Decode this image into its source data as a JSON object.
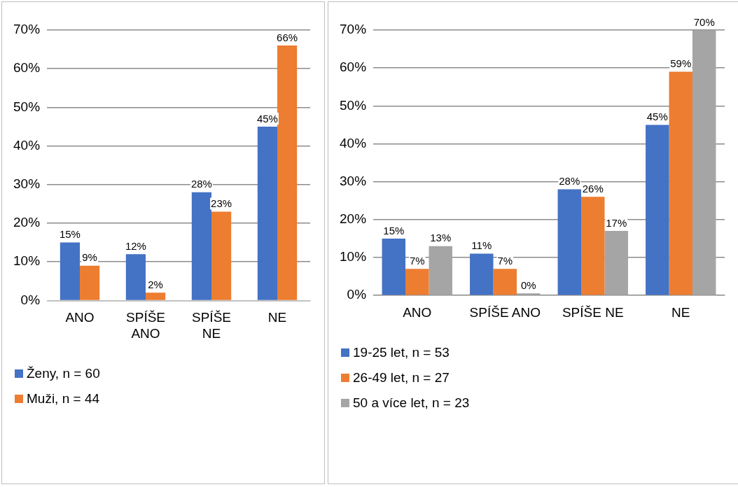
{
  "chart_data": [
    {
      "type": "bar",
      "categories": [
        "ANO",
        "SPÍŠE ANO",
        "SPÍŠE NE",
        "NE"
      ],
      "series": [
        {
          "name": "Ženy, n = 60",
          "color": "#4472c4",
          "values": [
            15,
            12,
            28,
            45
          ],
          "value_labels": [
            "15%",
            "12%",
            "28%",
            "45%"
          ]
        },
        {
          "name": "Muži, n = 44",
          "color": "#ed7d31",
          "values": [
            9,
            2,
            23,
            66
          ],
          "value_labels": [
            "9%",
            "2%",
            "23%",
            "66%"
          ]
        }
      ],
      "ylim": [
        0,
        70
      ],
      "yticks": [
        {
          "value": 0,
          "label": "0%"
        },
        {
          "value": 10,
          "label": "10%"
        },
        {
          "value": 20,
          "label": "20%"
        },
        {
          "value": 30,
          "label": "30%"
        },
        {
          "value": 40,
          "label": "40%"
        },
        {
          "value": 50,
          "label": "50%"
        },
        {
          "value": 60,
          "label": "60%"
        },
        {
          "value": 70,
          "label": "70%"
        }
      ],
      "grid": "y",
      "legend": "bottom"
    },
    {
      "type": "bar",
      "categories": [
        "ANO",
        "SPÍŠE ANO",
        "SPÍŠE NE",
        "NE"
      ],
      "series": [
        {
          "name": "19-25 let, n = 53",
          "color": "#4472c4",
          "values": [
            15,
            11,
            28,
            45
          ],
          "value_labels": [
            "15%",
            "11%",
            "28%",
            "45%"
          ]
        },
        {
          "name": "26-49 let, n = 27",
          "color": "#ed7d31",
          "values": [
            7,
            7,
            26,
            59
          ],
          "value_labels": [
            "7%",
            "7%",
            "26%",
            "59%"
          ]
        },
        {
          "name": "50 a více let, n = 23",
          "color": "#a5a5a5",
          "values": [
            13,
            0,
            17,
            70
          ],
          "value_labels": [
            "13%",
            "0%",
            "17%",
            "70%"
          ]
        }
      ],
      "ylim": [
        0,
        70
      ],
      "yticks": [
        {
          "value": 0,
          "label": "0%"
        },
        {
          "value": 10,
          "label": "10%"
        },
        {
          "value": 20,
          "label": "20%"
        },
        {
          "value": 30,
          "label": "30%"
        },
        {
          "value": 40,
          "label": "40%"
        },
        {
          "value": 50,
          "label": "50%"
        },
        {
          "value": 60,
          "label": "60%"
        },
        {
          "value": 70,
          "label": "70%"
        }
      ],
      "grid": "y",
      "legend": "bottom"
    }
  ]
}
